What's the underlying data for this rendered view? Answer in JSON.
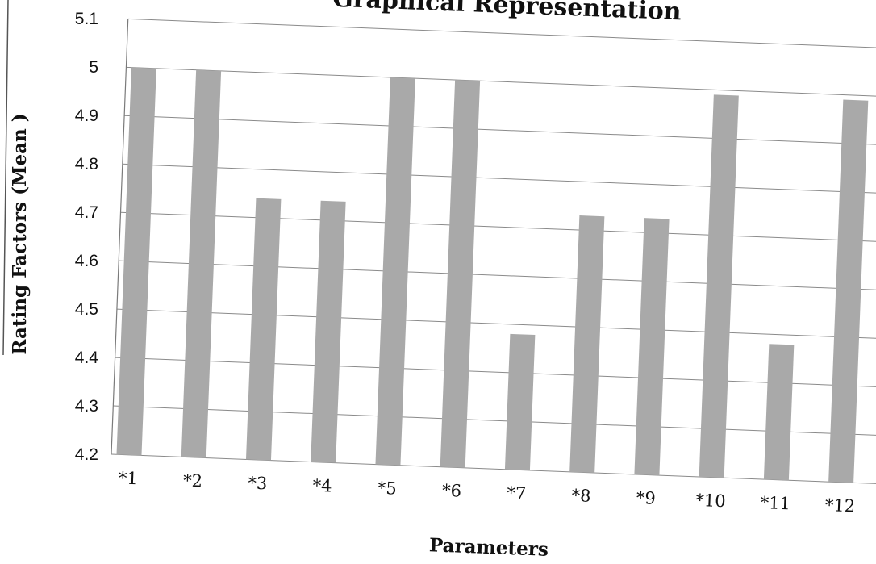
{
  "chart_data": {
    "type": "bar",
    "title": "Graphical Representation",
    "xlabel": "Parameters",
    "ylabel": "Rating Factors (Mean )",
    "categories": [
      "*1",
      "*2",
      "*3",
      "*4",
      "*5",
      "*6",
      "*7",
      "*8",
      "*9",
      "*10",
      "*11",
      "*12"
    ],
    "values": [
      5.0,
      5.0,
      4.74,
      4.74,
      5.0,
      5.0,
      4.48,
      4.73,
      4.73,
      4.99,
      4.48,
      4.99
    ],
    "ylim": [
      4.2,
      5.1
    ],
    "yticks": [
      "4.2",
      "4.3",
      "4.4",
      "4.5",
      "4.6",
      "4.7",
      "4.8",
      "4.9",
      "5",
      "5.1"
    ],
    "grid": true,
    "legend": "none",
    "bar_color": "#a9a9a9"
  }
}
